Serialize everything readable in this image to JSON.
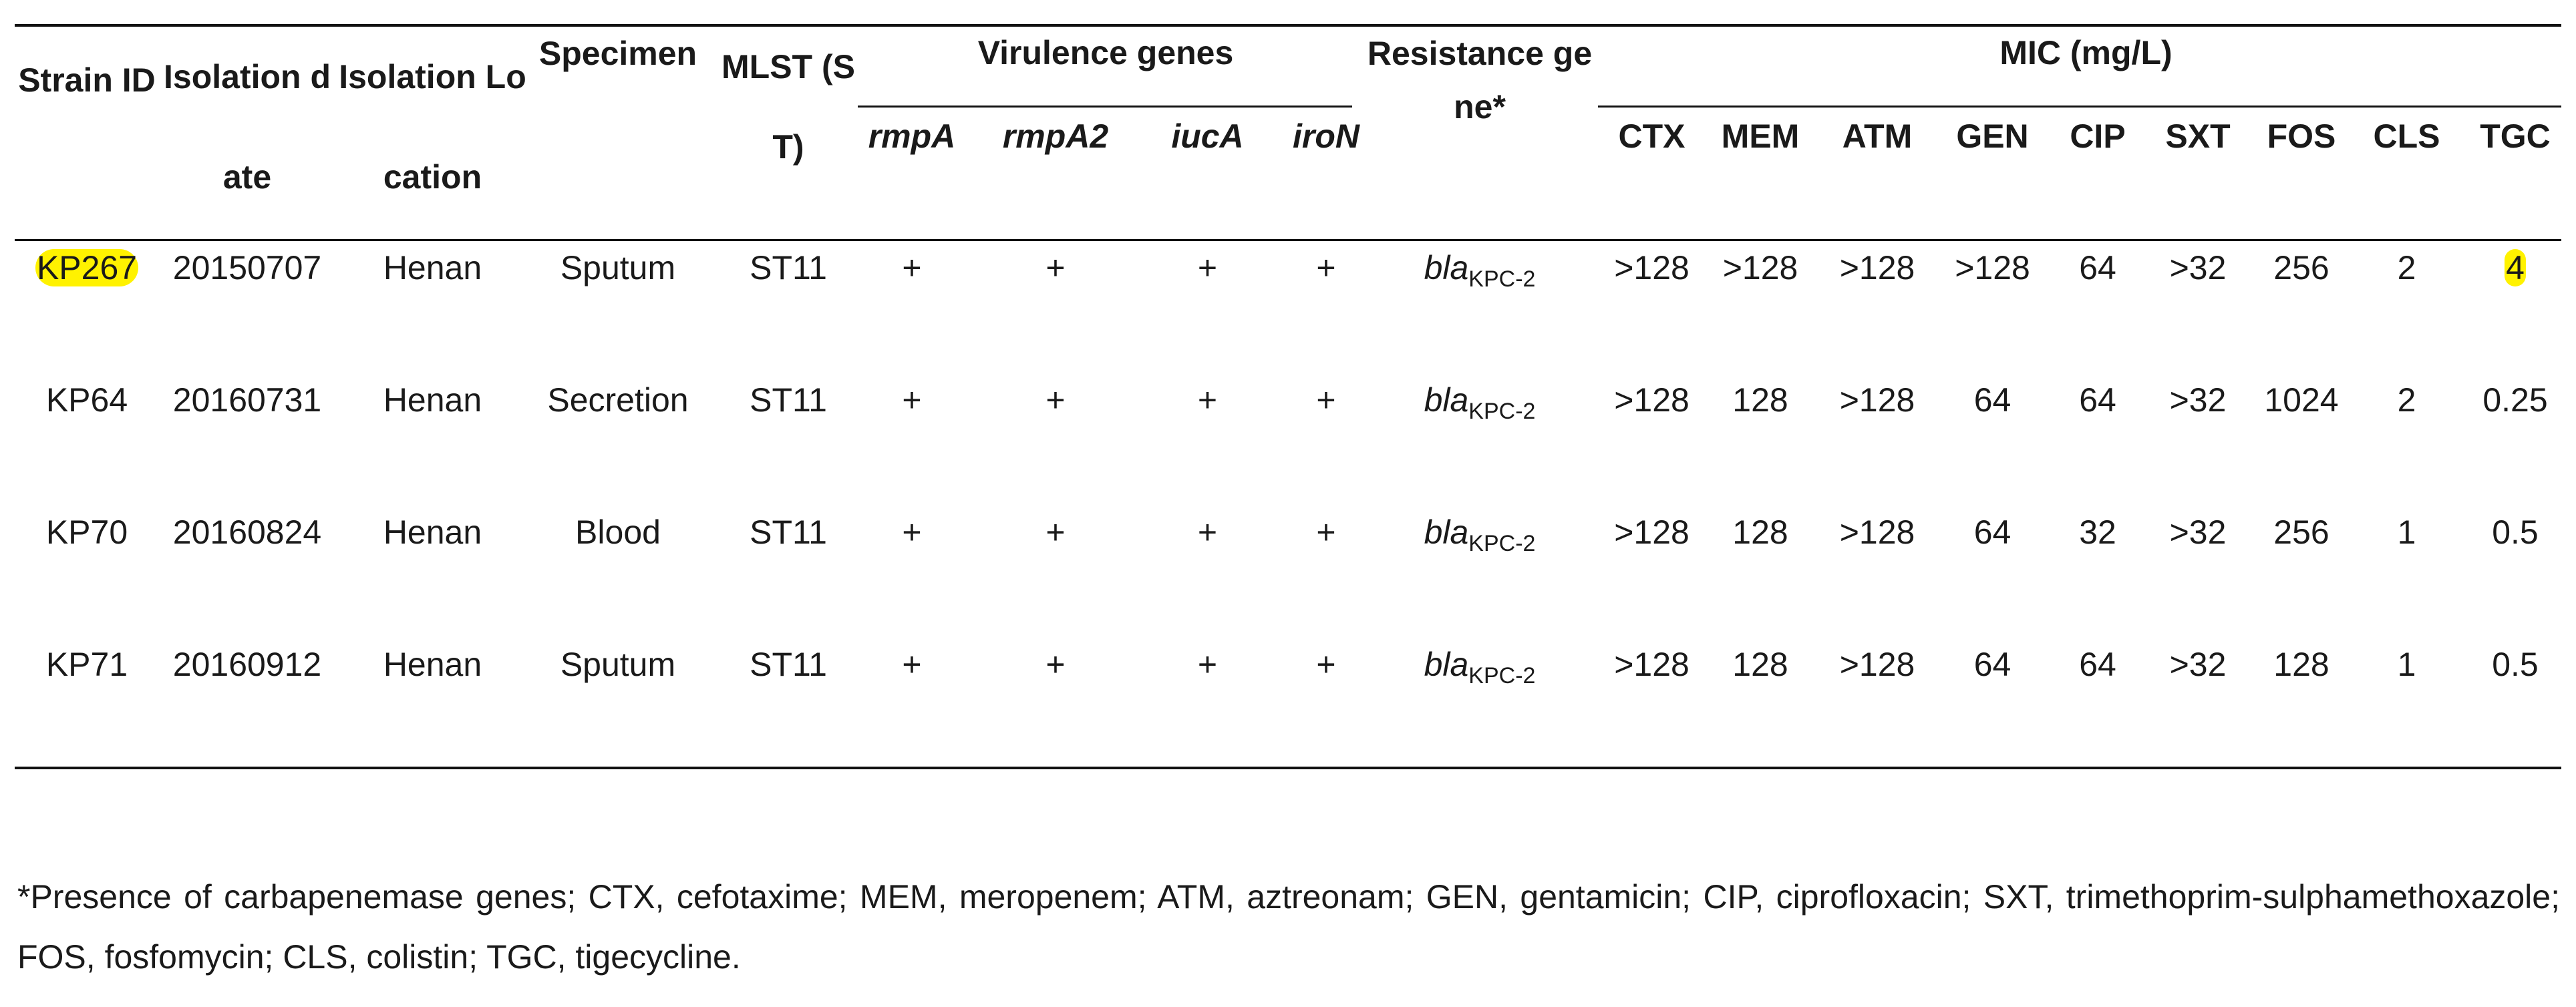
{
  "headers": {
    "strain_id": "Strain ID",
    "isolation_date": "Isolation date",
    "isolation_location": "Isolation Location",
    "specimen": "Specimen",
    "mlst": "MLST (ST)",
    "virulence_genes": "Virulence genes",
    "virulence_subheaders": [
      "rmpA",
      "rmpA2",
      "iucA",
      "iroN"
    ],
    "resistance_gene": "Resistance gene*",
    "mic": "MIC (mg/L)",
    "mic_subheaders": [
      "CTX",
      "MEM",
      "ATM",
      "GEN",
      "CIP",
      "SXT",
      "FOS",
      "CLS",
      "TGC"
    ]
  },
  "rows": [
    {
      "strain": "KP267",
      "date": "20150707",
      "location": "Henan",
      "specimen": "Sputum",
      "st": "ST11",
      "virulence": [
        "+",
        "+",
        "+",
        "+"
      ],
      "gene_base": "bla",
      "gene_sub": "KPC-2",
      "mic": [
        ">128",
        ">128",
        ">128",
        ">128",
        "64",
        ">32",
        "256",
        "2",
        "4"
      ]
    },
    {
      "strain": "KP64",
      "date": "20160731",
      "location": "Henan",
      "specimen": "Secretion",
      "st": "ST11",
      "virulence": [
        "+",
        "+",
        "+",
        "+"
      ],
      "gene_base": "bla",
      "gene_sub": "KPC-2",
      "mic": [
        ">128",
        "128",
        ">128",
        "64",
        "64",
        ">32",
        "1024",
        "2",
        "0.25"
      ]
    },
    {
      "strain": "KP70",
      "date": "20160824",
      "location": "Henan",
      "specimen": "Blood",
      "st": "ST11",
      "virulence": [
        "+",
        "+",
        "+",
        "+"
      ],
      "gene_base": "bla",
      "gene_sub": "KPC-2",
      "mic": [
        ">128",
        "128",
        ">128",
        "64",
        "32",
        ">32",
        "256",
        "1",
        "0.5"
      ]
    },
    {
      "strain": "KP71",
      "date": "20160912",
      "location": "Henan",
      "specimen": "Sputum",
      "st": "ST11",
      "virulence": [
        "+",
        "+",
        "+",
        "+"
      ],
      "gene_base": "bla",
      "gene_sub": "KPC-2",
      "mic": [
        ">128",
        "128",
        ">128",
        "64",
        "64",
        ">32",
        "128",
        "1",
        "0.5"
      ]
    }
  ],
  "highlight_color": "#fff200",
  "footnote": "*Presence of carbapenemase genes; CTX, cefotaxime; MEM, meropenem; ATM, aztreonam; GEN, gentamicin; CIP, ciprofloxacin; SXT, trimethoprim-sulphamethoxazole; FOS, fosfomycin; CLS, colistin; TGC, tigecycline."
}
